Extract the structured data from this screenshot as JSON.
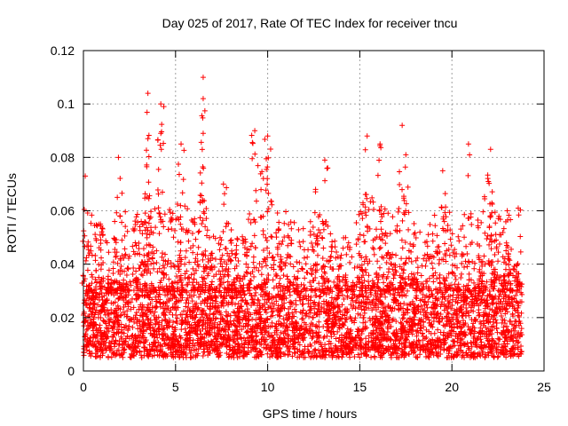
{
  "chart_data": {
    "type": "scatter",
    "title": "Day 025 of 2017, Rate Of TEC Index for receiver tncu",
    "xlabel": "GPS time / hours",
    "ylabel": "ROTI / TECUs",
    "xlim": [
      0,
      25
    ],
    "ylim": [
      0,
      0.12
    ],
    "xticks": [
      0,
      5,
      10,
      15,
      20,
      25
    ],
    "yticks": [
      0,
      0.02,
      0.04,
      0.06,
      0.08,
      0.1,
      0.12
    ],
    "xtick_labels": [
      "0",
      "5",
      "10",
      "15",
      "20",
      "25"
    ],
    "ytick_labels": [
      "0",
      "0.02",
      "0.04",
      "0.06",
      "0.08",
      "0.1",
      "0.12"
    ],
    "grid": true,
    "marker": "+",
    "color": "#ff0000",
    "x_range_data": [
      0,
      23.8
    ],
    "dense_band": [
      0.005,
      0.03
    ],
    "peaks": [
      {
        "x": 0.1,
        "y": 0.073
      },
      {
        "x": 1.9,
        "y": 0.08
      },
      {
        "x": 3.5,
        "y": 0.104
      },
      {
        "x": 3.5,
        "y": 0.087
      },
      {
        "x": 4.2,
        "y": 0.1
      },
      {
        "x": 4.2,
        "y": 0.089
      },
      {
        "x": 5.3,
        "y": 0.085
      },
      {
        "x": 6.5,
        "y": 0.11
      },
      {
        "x": 6.5,
        "y": 0.102
      },
      {
        "x": 6.5,
        "y": 0.089
      },
      {
        "x": 7.6,
        "y": 0.07
      },
      {
        "x": 9.3,
        "y": 0.09
      },
      {
        "x": 10.0,
        "y": 0.088
      },
      {
        "x": 12.6,
        "y": 0.068
      },
      {
        "x": 13.1,
        "y": 0.079
      },
      {
        "x": 15.4,
        "y": 0.088
      },
      {
        "x": 16.1,
        "y": 0.085
      },
      {
        "x": 17.3,
        "y": 0.092
      },
      {
        "x": 17.5,
        "y": 0.081
      },
      {
        "x": 19.5,
        "y": 0.075
      },
      {
        "x": 20.9,
        "y": 0.085
      },
      {
        "x": 22.1,
        "y": 0.083
      },
      {
        "x": 23.0,
        "y": 0.06
      },
      {
        "x": 23.6,
        "y": 0.061
      }
    ],
    "envelope": [
      [
        0.0,
        0.05
      ],
      [
        0.5,
        0.06
      ],
      [
        1.0,
        0.055
      ],
      [
        1.5,
        0.05
      ],
      [
        2.0,
        0.07
      ],
      [
        2.5,
        0.055
      ],
      [
        3.0,
        0.06
      ],
      [
        3.5,
        0.07
      ],
      [
        4.0,
        0.06
      ],
      [
        4.5,
        0.06
      ],
      [
        5.0,
        0.062
      ],
      [
        5.5,
        0.065
      ],
      [
        6.0,
        0.06
      ],
      [
        6.5,
        0.068
      ],
      [
        7.0,
        0.05
      ],
      [
        7.5,
        0.06
      ],
      [
        8.0,
        0.055
      ],
      [
        8.5,
        0.05
      ],
      [
        9.0,
        0.06
      ],
      [
        9.5,
        0.075
      ],
      [
        10.0,
        0.075
      ],
      [
        10.5,
        0.06
      ],
      [
        11.0,
        0.06
      ],
      [
        11.5,
        0.055
      ],
      [
        12.0,
        0.055
      ],
      [
        12.5,
        0.06
      ],
      [
        13.0,
        0.065
      ],
      [
        13.5,
        0.05
      ],
      [
        14.0,
        0.05
      ],
      [
        14.5,
        0.055
      ],
      [
        15.0,
        0.06
      ],
      [
        15.5,
        0.07
      ],
      [
        16.0,
        0.065
      ],
      [
        16.5,
        0.06
      ],
      [
        17.0,
        0.06
      ],
      [
        17.5,
        0.065
      ],
      [
        18.0,
        0.055
      ],
      [
        18.5,
        0.05
      ],
      [
        19.0,
        0.06
      ],
      [
        19.5,
        0.06
      ],
      [
        20.0,
        0.06
      ],
      [
        20.5,
        0.06
      ],
      [
        21.0,
        0.065
      ],
      [
        21.5,
        0.06
      ],
      [
        22.0,
        0.075
      ],
      [
        22.5,
        0.06
      ],
      [
        23.0,
        0.05
      ],
      [
        23.5,
        0.04
      ],
      [
        23.8,
        0.04
      ]
    ]
  }
}
